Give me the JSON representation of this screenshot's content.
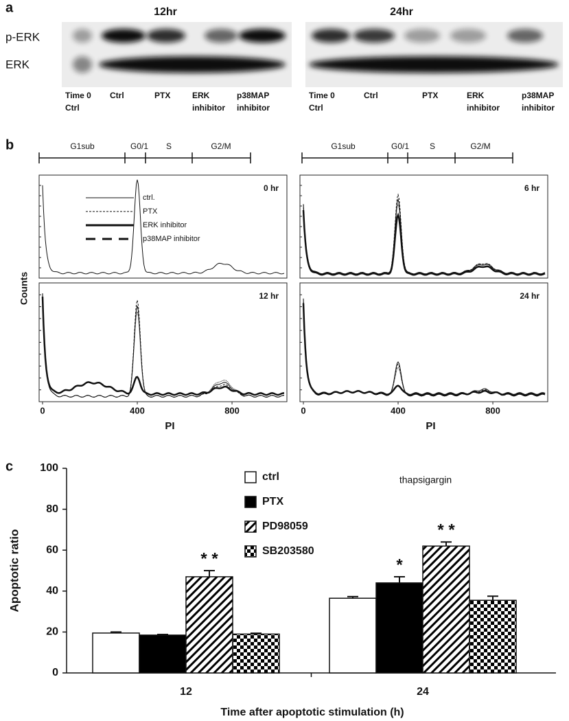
{
  "panel_a": {
    "label": "a",
    "blots": [
      {
        "time": "12hr",
        "lanes": [
          [
            "Time 0",
            "Ctrl"
          ],
          [
            "Ctrl"
          ],
          [
            "PTX"
          ],
          [
            "ERK",
            "inhibitor"
          ],
          [
            "p38MAP",
            "inhibitor"
          ]
        ]
      },
      {
        "time": "24hr",
        "lanes": [
          [
            "Time 0",
            "Ctrl"
          ],
          [
            "Ctrl"
          ],
          [
            "PTX"
          ],
          [
            "ERK",
            "inhibitor"
          ],
          [
            "p38MAP",
            "inhibitor"
          ]
        ]
      }
    ],
    "row_labels": [
      "p-ERK",
      "ERK"
    ]
  },
  "panel_b": {
    "label": "b",
    "phases": [
      "G1sub",
      "G0/1",
      "S",
      "G2/M"
    ],
    "x_label": "PI",
    "y_label": "Counts",
    "xlim": [
      0,
      1023
    ],
    "xticks": [
      0,
      400,
      800
    ],
    "times": [
      "0 hr",
      "6 hr",
      "12 hr",
      "24 hr"
    ],
    "legend": [
      "ctrl.",
      "PTX",
      "ERK inhibitor",
      "p38MAP inhibitor"
    ]
  },
  "chart_data": {
    "type": "bar",
    "label": "c",
    "subtitle": "thapsigargin",
    "x_label": "Time after apoptotic stimulation (h)",
    "y_label": "Apoptotic ratio",
    "categories": [
      "12",
      "24"
    ],
    "ylim": [
      0,
      100
    ],
    "yticks": [
      0,
      20,
      40,
      60,
      80,
      100
    ],
    "series": [
      {
        "name": "ctrl",
        "color": "#ffffff",
        "pattern": "solid",
        "values": [
          19.5,
          36.5
        ],
        "errors": [
          0.5,
          0.8
        ]
      },
      {
        "name": "PTX",
        "color": "#000000",
        "pattern": "solid",
        "values": [
          18.5,
          44
        ],
        "errors": [
          0.3,
          3
        ]
      },
      {
        "name": "PD98059",
        "color": "#000000",
        "pattern": "hatch",
        "values": [
          47,
          62
        ],
        "errors": [
          3,
          2
        ]
      },
      {
        "name": "SB203580",
        "color": "#000000",
        "pattern": "checker",
        "values": [
          19,
          35.5
        ],
        "errors": [
          0.4,
          2
        ]
      }
    ],
    "annotations": [
      "* *",
      "*",
      "* *"
    ]
  }
}
